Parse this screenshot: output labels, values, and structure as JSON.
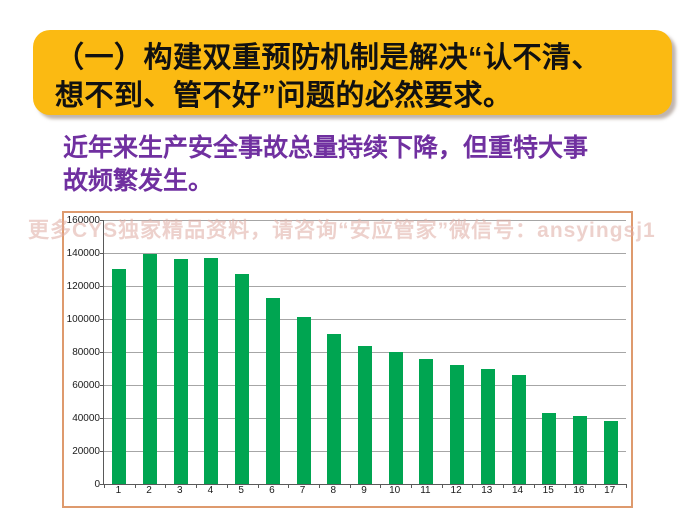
{
  "banner": {
    "lines": [
      "（一）构建双重预防机制是解决“认不清、",
      "想不到、管不好”问题的必然要求。"
    ],
    "bg_color": "#FBBA12",
    "text_color": "#111111"
  },
  "subtitle": {
    "lines": [
      "近年来生产安全事故总量持续下降，但重特大事",
      "故频繁发生。"
    ],
    "color": "#7030A0"
  },
  "watermark": {
    "text": "更多CYS独家精品资料，请咨询“安应管家”微信号：ansyingsj1",
    "color": "#E0ACA4"
  },
  "chart_data": {
    "type": "bar",
    "title": "",
    "xlabel": "",
    "ylabel": "",
    "categories": [
      "1",
      "2",
      "3",
      "4",
      "5",
      "6",
      "7",
      "8",
      "9",
      "10",
      "11",
      "12",
      "13",
      "14",
      "15",
      "16",
      "17"
    ],
    "values": [
      130500,
      139500,
      136300,
      136700,
      127000,
      113000,
      101500,
      91000,
      83500,
      80000,
      76000,
      72000,
      69500,
      66000,
      43000,
      41000,
      38000
    ],
    "ylim": [
      0,
      160000
    ],
    "ytick_step": 20000,
    "ytick_labels": [
      "0",
      "20000",
      "40000",
      "60000",
      "80000",
      "100000",
      "120000",
      "140000",
      "160000"
    ],
    "bar_color": "#00A551",
    "gridline_color": "#A6A6A6",
    "axis_color": "#595959",
    "frame_color": "#DE9A6D",
    "grid": true,
    "legend": false
  }
}
